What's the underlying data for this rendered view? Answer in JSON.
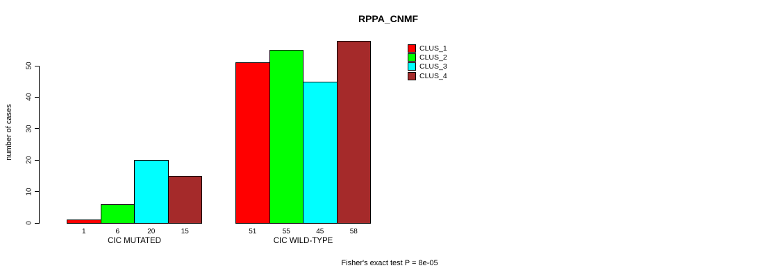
{
  "chart_data": {
    "type": "bar",
    "title": "RPPA_CNMF",
    "ylabel": "number of cases",
    "xlabel": "",
    "categories": [
      "CIC MUTATED",
      "CIC WILD-TYPE"
    ],
    "series": [
      {
        "name": "CLUS_1",
        "color": "#FF0000",
        "values": [
          1,
          51
        ]
      },
      {
        "name": "CLUS_2",
        "color": "#00FF00",
        "values": [
          6,
          55
        ]
      },
      {
        "name": "CLUS_3",
        "color": "#00FFFF",
        "values": [
          20,
          45
        ]
      },
      {
        "name": "CLUS_4",
        "color": "#A52A2A",
        "values": [
          15,
          58
        ]
      }
    ],
    "yticks": [
      0,
      10,
      20,
      30,
      40,
      50
    ],
    "ylim": [
      0,
      58
    ],
    "grid": false,
    "bar_borders": true,
    "value_labels_under_bars": true,
    "legend_position": "top-right",
    "legend_labels": [
      "CLUS_1",
      "CLUS_2",
      "CLUS_3",
      "CLUS_4"
    ],
    "annotation": "Fisher's exact test P = 8e-05",
    "axis_color": "#000000",
    "background_color": "#FFFFFF"
  }
}
